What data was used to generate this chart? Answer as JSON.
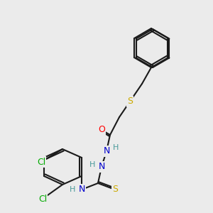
{
  "bg_color": "#ebebeb",
  "bond_color": "#1a1a1a",
  "bond_width": 1.5,
  "atom_colors": {
    "N": "#0000cc",
    "O": "#ff0000",
    "S": "#ccaa00",
    "Cl": "#00aa00",
    "C": "#1a1a1a",
    "H": "#4a9a9a"
  },
  "font_size": 9,
  "font_size_small": 8
}
